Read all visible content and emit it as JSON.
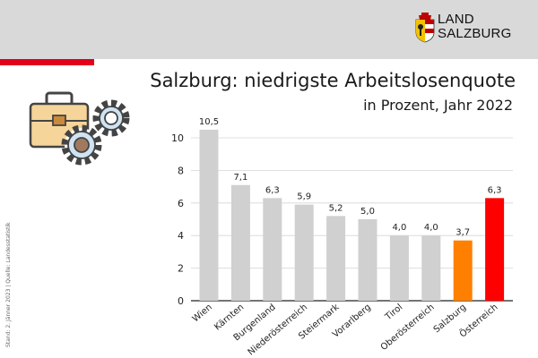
{
  "logo": {
    "line1": "LAND",
    "line2": "SALZBURG"
  },
  "source_note": "Stand: 2. Jänner 2023 | Quelle: Landesstatistik",
  "icons": {
    "decor": "briefcase-gears-icon",
    "logo": "coat-of-arms-icon"
  },
  "colors": {
    "default_bar": "#d0d0d0",
    "salzburg": "#ff8000",
    "oesterreich": "#ff0000",
    "accent": "#e3001b"
  },
  "chart_data": {
    "type": "bar",
    "title": "Salzburg: niedrigste Arbeitslosenquote",
    "subtitle": "in Prozent, Jahr 2022",
    "categories": [
      "Wien",
      "Kärnten",
      "Burgenland",
      "Niederösterreich",
      "Steiermark",
      "Vorarlberg",
      "Tirol",
      "Oberösterreich",
      "Salzburg",
      "Österreich"
    ],
    "values": [
      10.5,
      7.1,
      6.3,
      5.9,
      5.2,
      5.0,
      4.0,
      4.0,
      3.7,
      6.3
    ],
    "value_labels": [
      "10,5",
      "7,1",
      "6,3",
      "5,9",
      "5,2",
      "5,0",
      "4,0",
      "4,0",
      "3,7",
      "6,3"
    ],
    "highlight": {
      "Salzburg": "salzburg",
      "Österreich": "oesterreich"
    },
    "yticks": [
      0,
      2,
      4,
      6,
      8,
      10
    ],
    "ylim": [
      0,
      12
    ],
    "xlabel": "",
    "ylabel": "",
    "grid": true,
    "legend": "none"
  }
}
